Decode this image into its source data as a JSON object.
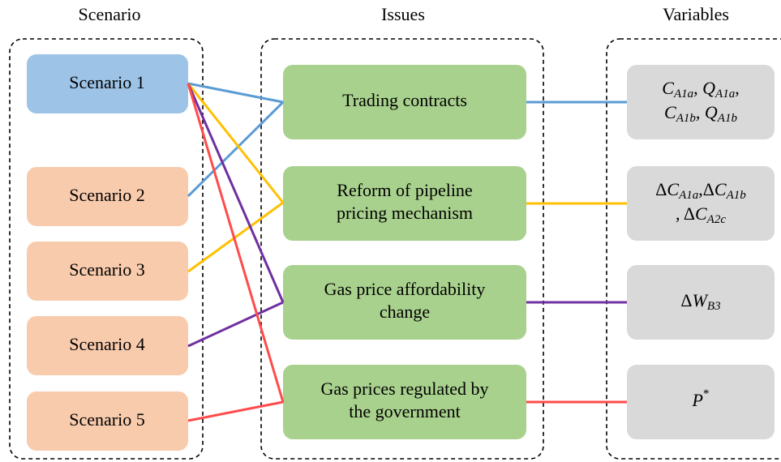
{
  "headers": {
    "scenario": "Scenario",
    "issues": "Issues",
    "variables": "Variables"
  },
  "scenarios": [
    "Scenario 1",
    "Scenario 2",
    "Scenario 3",
    "Scenario 4",
    "Scenario 5"
  ],
  "issues": [
    {
      "lines": [
        "Trading contracts"
      ]
    },
    {
      "lines": [
        "Reform of pipeline",
        "pricing mechanism"
      ]
    },
    {
      "lines": [
        "Gas price affordability",
        "change"
      ]
    },
    {
      "lines": [
        "Gas prices regulated by",
        "the government"
      ]
    }
  ],
  "variables": [
    {
      "lines": [
        [
          {
            "base": "C",
            "sub": "A1a"
          },
          ",  ",
          {
            "base": "Q",
            "sub": "A1a"
          },
          ","
        ],
        [
          {
            "base": "C",
            "sub": "A1b"
          },
          ",  ",
          {
            "base": "Q",
            "sub": "A1b"
          }
        ]
      ]
    },
    {
      "lines": [
        [
          {
            "pre": "Δ",
            "base": "C",
            "sub": "A1a"
          },
          ",",
          {
            "pre": "Δ",
            "base": "C",
            "sub": "A1b"
          }
        ],
        [
          ",  ",
          {
            "pre": "Δ",
            "base": "C",
            "sub": "A2c"
          }
        ]
      ]
    },
    {
      "lines": [
        [
          {
            "pre": "Δ",
            "base": "W",
            "sub": "B3"
          }
        ]
      ]
    },
    {
      "lines": [
        [
          {
            "base": "P",
            "sup": "*"
          }
        ]
      ]
    }
  ]
}
